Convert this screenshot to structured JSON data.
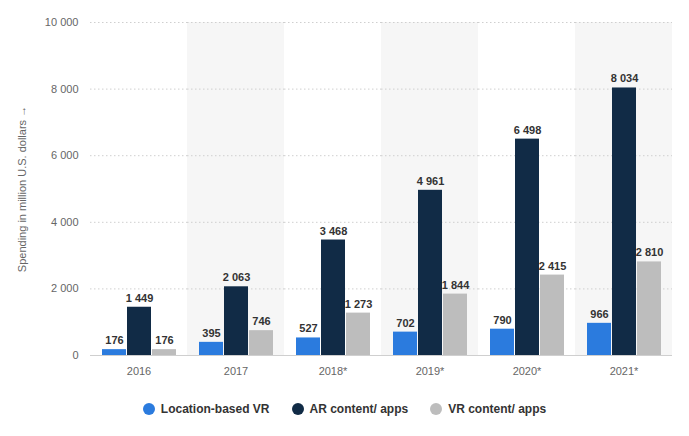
{
  "chart_data": {
    "type": "bar",
    "y_label": "Spending in million U.S. dollars",
    "categories": [
      "2016",
      "2017",
      "2018*",
      "2019*",
      "2020*",
      "2021*"
    ],
    "series": [
      {
        "name": "Location-based VR",
        "color": "#2b7bde",
        "values": [
          176,
          395,
          527,
          702,
          790,
          966
        ],
        "value_labels": [
          "176",
          "395",
          "527",
          "702",
          "790",
          "966"
        ]
      },
      {
        "name": "AR content/ apps",
        "color": "#112b46",
        "values": [
          1449,
          2063,
          3468,
          4961,
          6498,
          8034
        ],
        "value_labels": [
          "1 449",
          "2 063",
          "3 468",
          "4 961",
          "6 498",
          "8 034"
        ]
      },
      {
        "name": "VR content/ apps",
        "color": "#bdbdbd",
        "values": [
          176,
          746,
          1273,
          1844,
          2415,
          2810
        ],
        "value_labels": [
          "176",
          "746",
          "1 273",
          "1 844",
          "2 415",
          "2 810"
        ]
      }
    ],
    "ylim": [
      0,
      10000
    ],
    "yticks": [
      0,
      {
        "value": 2000,
        "label": "2 000"
      },
      {
        "value": 4000,
        "label": "4 000"
      },
      {
        "value": 6000,
        "label": "6 000"
      },
      {
        "value": 8000,
        "label": "8 000"
      },
      {
        "value": 10000,
        "label": "10 000"
      }
    ],
    "grid": true,
    "data_labels": true,
    "legend": "bottom"
  }
}
